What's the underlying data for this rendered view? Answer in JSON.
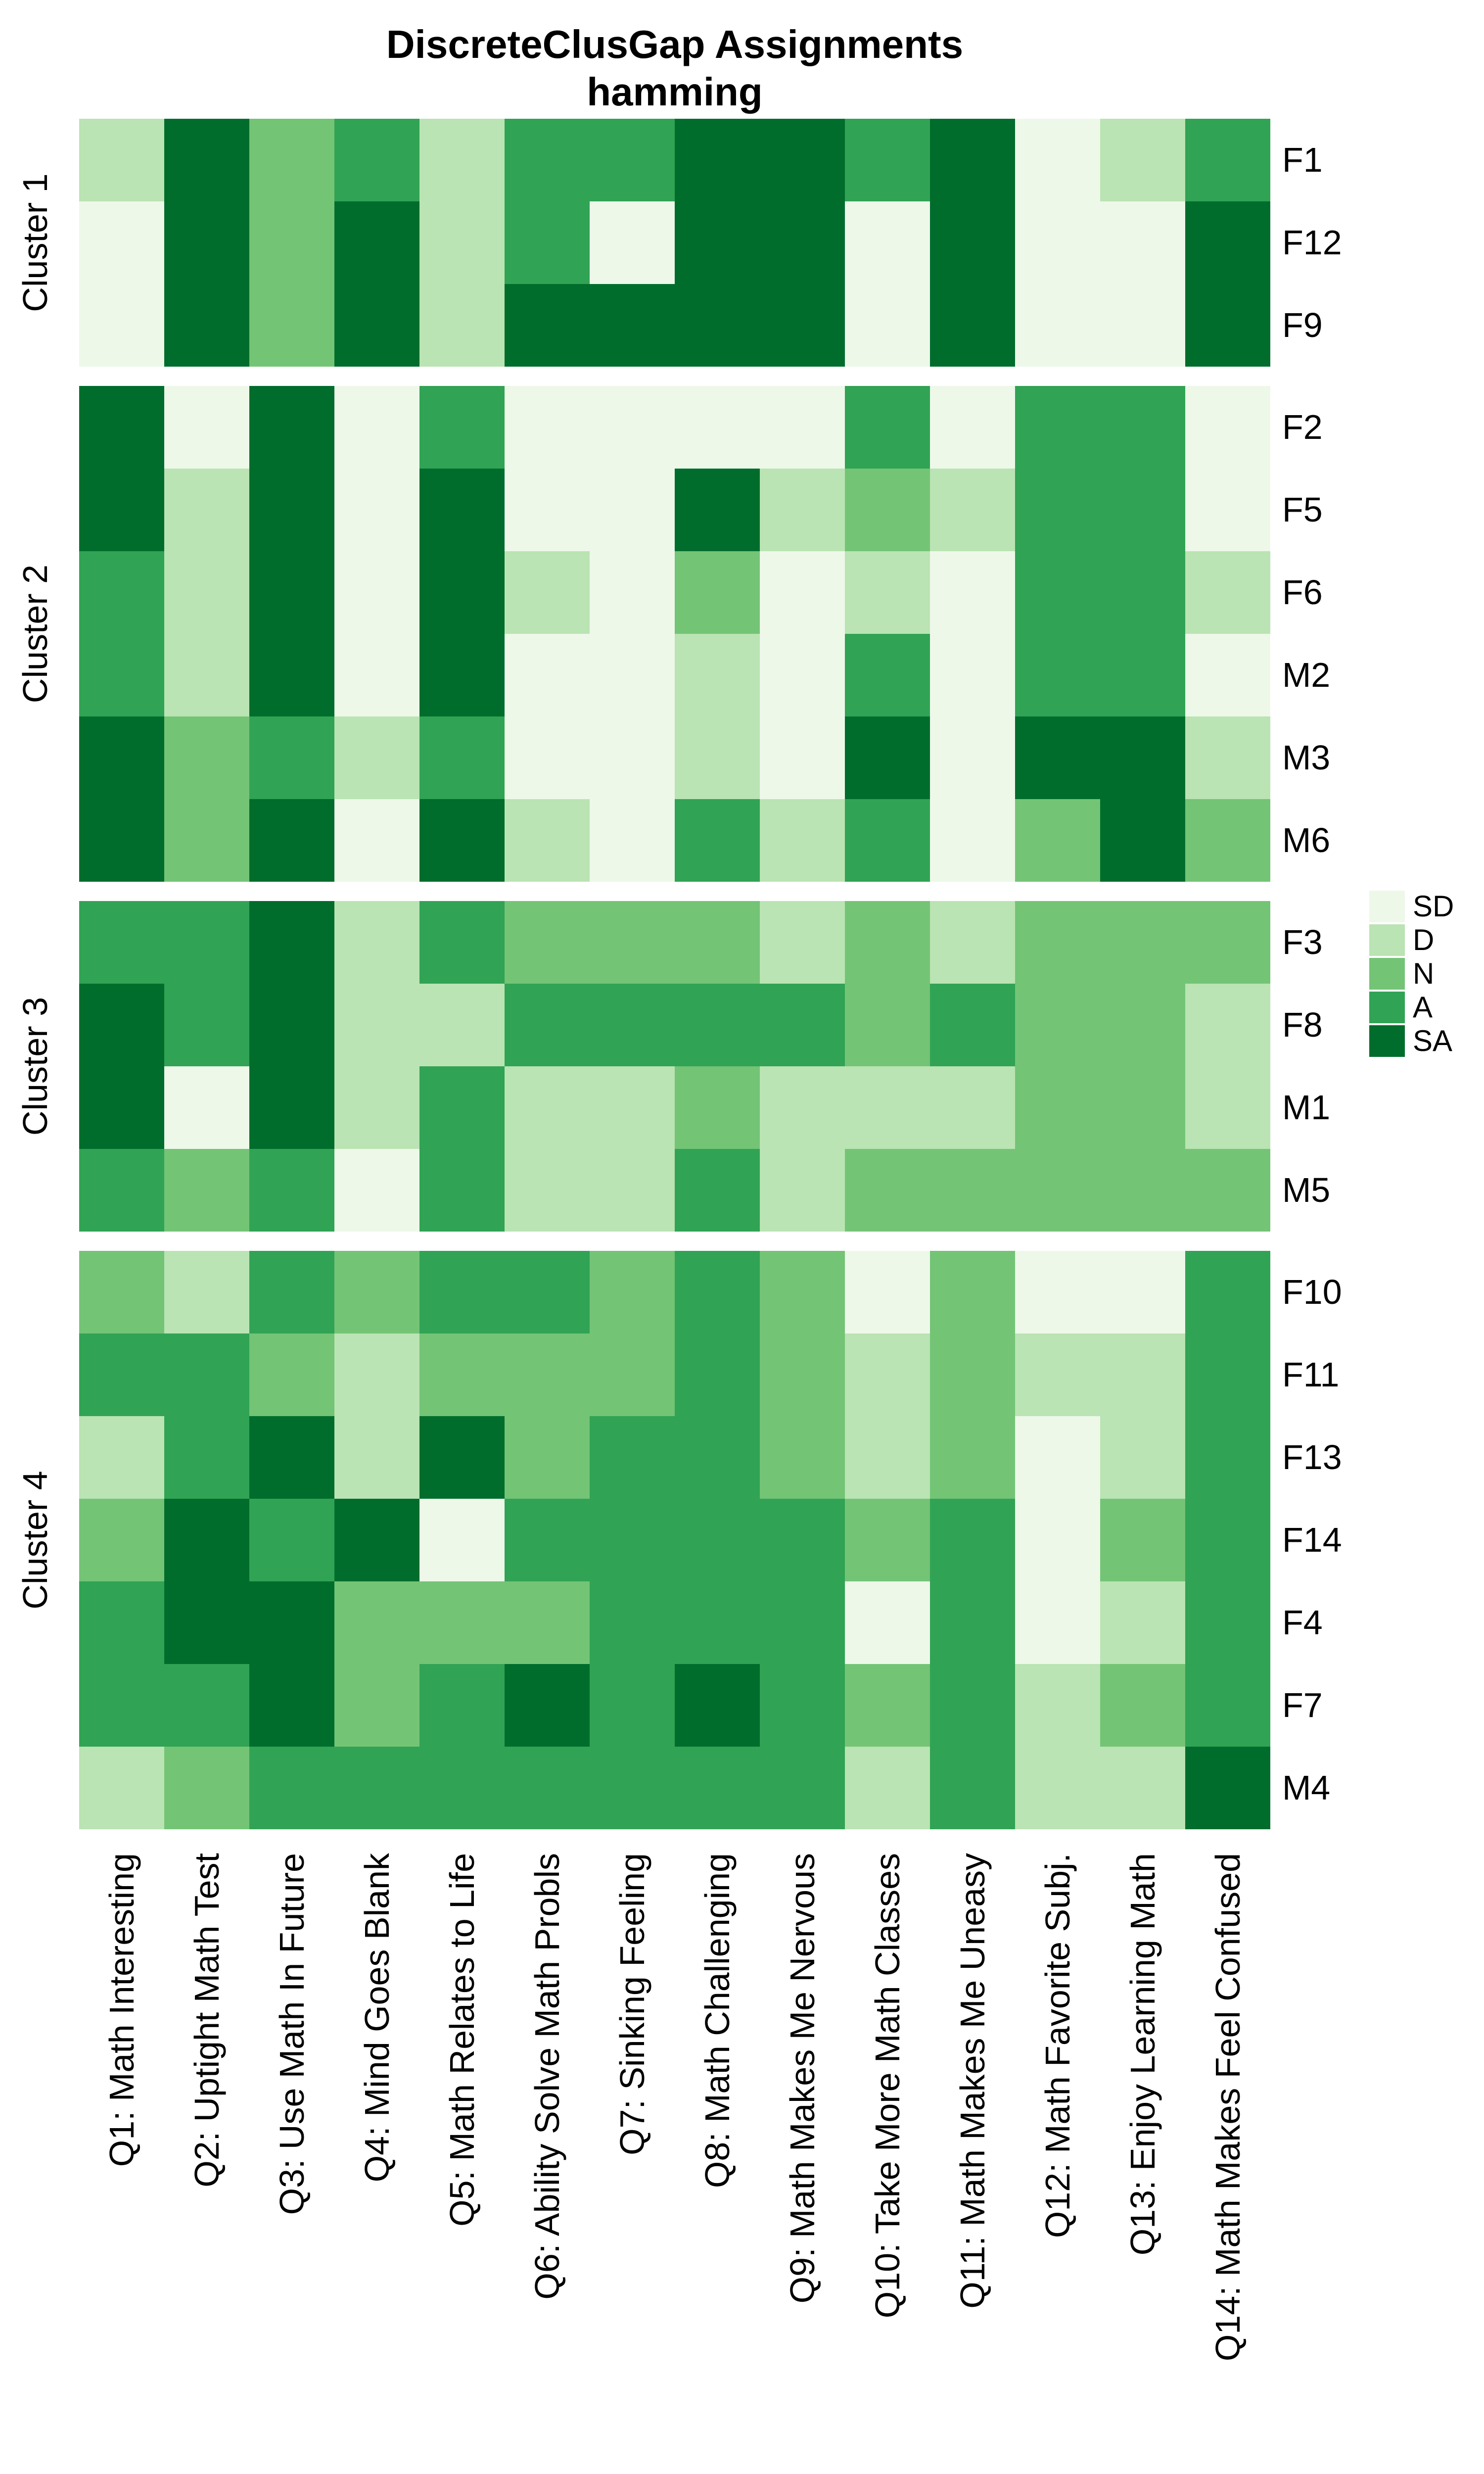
{
  "title": "DiscreteClusGap Assignments",
  "subtitle": "hamming",
  "chart_data": {
    "type": "heatmap",
    "title": "DiscreteClusGap Assignments",
    "subtitle": "hamming",
    "legend_position": "right",
    "value_scale": [
      "SD",
      "D",
      "N",
      "A",
      "SA"
    ],
    "colors": {
      "SD": "#edf8e9",
      "D": "#bae4b3",
      "N": "#74c476",
      "A": "#31a354",
      "SA": "#006d2c"
    },
    "columns": [
      "Q1: Math Interesting",
      "Q2: Uptight Math Test",
      "Q3: Use Math In Future",
      "Q4: Mind Goes Blank",
      "Q5: Math Relates to Life",
      "Q6: Ability Solve Math Probls",
      "Q7: Sinking Feeling",
      "Q8: Math Challenging",
      "Q9: Math Makes Me Nervous",
      "Q10: Take More Math Classes",
      "Q11: Math Makes Me Uneasy",
      "Q12: Math Favorite Subj.",
      "Q13: Enjoy Learning Math",
      "Q14: Math Makes Feel Confused"
    ],
    "clusters": [
      {
        "label": "Cluster 1",
        "rows": [
          {
            "id": "F1",
            "values": [
              "D",
              "SA",
              "N",
              "A",
              "D",
              "A",
              "A",
              "SA",
              "SA",
              "A",
              "SA",
              "SD",
              "D",
              "A"
            ]
          },
          {
            "id": "F12",
            "values": [
              "SD",
              "SA",
              "N",
              "SA",
              "D",
              "A",
              "SD",
              "SA",
              "SA",
              "SD",
              "SA",
              "SD",
              "SD",
              "SA"
            ]
          },
          {
            "id": "F9",
            "values": [
              "SD",
              "SA",
              "N",
              "SA",
              "D",
              "SA",
              "SA",
              "SA",
              "SA",
              "SD",
              "SA",
              "SD",
              "SD",
              "SA"
            ]
          }
        ]
      },
      {
        "label": "Cluster 2",
        "rows": [
          {
            "id": "F2",
            "values": [
              "SA",
              "SD",
              "SA",
              "SD",
              "A",
              "SD",
              "SD",
              "SD",
              "SD",
              "A",
              "SD",
              "A",
              "A",
              "SD"
            ]
          },
          {
            "id": "F5",
            "values": [
              "SA",
              "D",
              "SA",
              "SD",
              "SA",
              "SD",
              "SD",
              "SA",
              "D",
              "N",
              "D",
              "A",
              "A",
              "SD"
            ]
          },
          {
            "id": "F6",
            "values": [
              "A",
              "D",
              "SA",
              "SD",
              "SA",
              "D",
              "SD",
              "N",
              "SD",
              "D",
              "SD",
              "A",
              "A",
              "D"
            ]
          },
          {
            "id": "M2",
            "values": [
              "A",
              "D",
              "SA",
              "SD",
              "SA",
              "SD",
              "SD",
              "D",
              "SD",
              "A",
              "SD",
              "A",
              "A",
              "SD"
            ]
          },
          {
            "id": "M3",
            "values": [
              "SA",
              "N",
              "A",
              "D",
              "A",
              "SD",
              "SD",
              "D",
              "SD",
              "SA",
              "SD",
              "SA",
              "SA",
              "D"
            ]
          },
          {
            "id": "M6",
            "values": [
              "SA",
              "N",
              "SA",
              "SD",
              "SA",
              "D",
              "SD",
              "A",
              "D",
              "A",
              "SD",
              "N",
              "SA",
              "N"
            ]
          }
        ]
      },
      {
        "label": "Cluster 3",
        "rows": [
          {
            "id": "F3",
            "values": [
              "A",
              "A",
              "SA",
              "D",
              "A",
              "N",
              "N",
              "N",
              "D",
              "N",
              "D",
              "N",
              "N",
              "N"
            ]
          },
          {
            "id": "F8",
            "values": [
              "SA",
              "A",
              "SA",
              "D",
              "D",
              "A",
              "A",
              "A",
              "A",
              "N",
              "A",
              "N",
              "N",
              "D"
            ]
          },
          {
            "id": "M1",
            "values": [
              "SA",
              "SD",
              "SA",
              "D",
              "A",
              "D",
              "D",
              "N",
              "D",
              "D",
              "D",
              "N",
              "N",
              "D"
            ]
          },
          {
            "id": "M5",
            "values": [
              "A",
              "N",
              "A",
              "SD",
              "A",
              "D",
              "D",
              "A",
              "D",
              "N",
              "N",
              "N",
              "N",
              "N"
            ]
          }
        ]
      },
      {
        "label": "Cluster 4",
        "rows": [
          {
            "id": "F10",
            "values": [
              "N",
              "D",
              "A",
              "N",
              "A",
              "A",
              "N",
              "A",
              "N",
              "SD",
              "N",
              "SD",
              "SD",
              "A"
            ]
          },
          {
            "id": "F11",
            "values": [
              "A",
              "A",
              "N",
              "D",
              "N",
              "N",
              "N",
              "A",
              "N",
              "D",
              "N",
              "D",
              "D",
              "A"
            ]
          },
          {
            "id": "F13",
            "values": [
              "D",
              "A",
              "SA",
              "D",
              "SA",
              "N",
              "A",
              "A",
              "N",
              "D",
              "N",
              "SD",
              "D",
              "A"
            ]
          },
          {
            "id": "F14",
            "values": [
              "N",
              "SA",
              "A",
              "SA",
              "SD",
              "A",
              "A",
              "A",
              "A",
              "N",
              "A",
              "SD",
              "N",
              "A"
            ]
          },
          {
            "id": "F4",
            "values": [
              "A",
              "SA",
              "SA",
              "N",
              "N",
              "N",
              "A",
              "A",
              "A",
              "SD",
              "A",
              "SD",
              "D",
              "A"
            ]
          },
          {
            "id": "F7",
            "values": [
              "A",
              "A",
              "SA",
              "N",
              "A",
              "SA",
              "A",
              "SA",
              "A",
              "N",
              "A",
              "D",
              "N",
              "A"
            ]
          },
          {
            "id": "M4",
            "values": [
              "D",
              "N",
              "A",
              "A",
              "A",
              "A",
              "A",
              "A",
              "A",
              "D",
              "A",
              "D",
              "D",
              "SA"
            ]
          }
        ]
      }
    ]
  }
}
